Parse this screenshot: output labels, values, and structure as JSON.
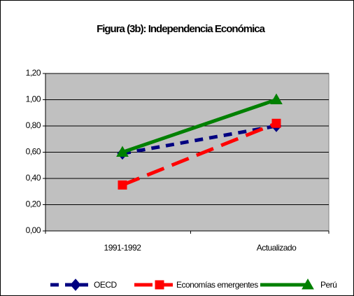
{
  "chart_data": {
    "type": "line",
    "title": "Figura (3b): Independencia Económica",
    "categories": [
      "1991-1992",
      "Actualizado"
    ],
    "series": [
      {
        "name": "OECD",
        "color": "#000080",
        "marker": "diamond",
        "dash": "12,9",
        "values": [
          0.59,
          0.8
        ]
      },
      {
        "name": "Economías emergentes",
        "color": "#ff0000",
        "marker": "square",
        "dash": "26,12",
        "values": [
          0.35,
          0.82
        ]
      },
      {
        "name": "Perú",
        "color": "#008000",
        "marker": "triangle",
        "dash": "none",
        "values": [
          0.6,
          1.0
        ]
      }
    ],
    "ylim": [
      0,
      1.2
    ],
    "yticks": [
      {
        "value": 0,
        "label": "0,00"
      },
      {
        "value": 0.2,
        "label": "0,20"
      },
      {
        "value": 0.4,
        "label": "0,40"
      },
      {
        "value": 0.6,
        "label": "0,60"
      },
      {
        "value": 0.8,
        "label": "0,80"
      },
      {
        "value": 1.0,
        "label": "1,00"
      },
      {
        "value": 1.2,
        "label": "1,20"
      }
    ],
    "grid": true,
    "plot_background": "#c0c0c0",
    "legend": "bottom"
  }
}
